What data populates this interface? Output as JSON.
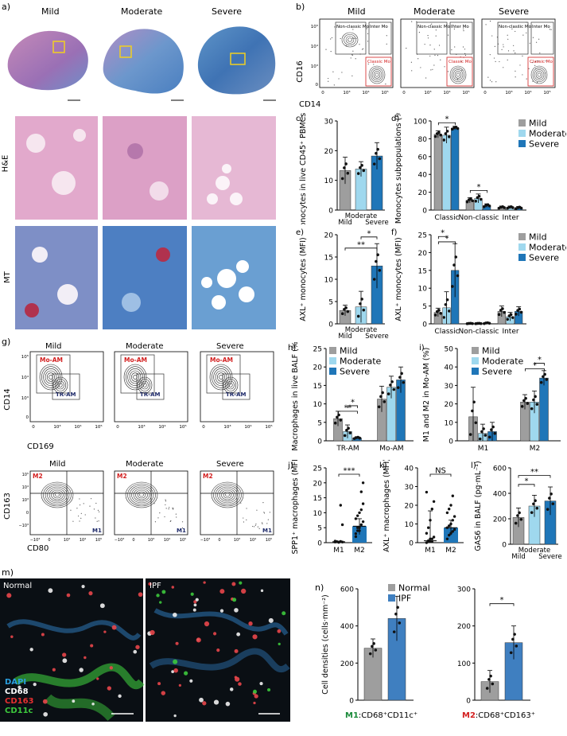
{
  "colors": {
    "mild": "#9e9e9e",
    "moderate": "#9fd8ee",
    "severe": "#1f76b8",
    "normal": "#9e9e9e",
    "ipf": "#3f7fc0",
    "red_label": "#d32020",
    "tissue_pink": "#c880b0",
    "tissue_blue": "#5b8fc8"
  },
  "panels": {
    "a": "a)",
    "b": "b)",
    "c": "c)",
    "d": "d)",
    "e": "e)",
    "f": "f)",
    "g": "g)",
    "h": "h)",
    "i": "i)",
    "j": "j)",
    "k": "k)",
    "l": "l)",
    "m": "m)",
    "n": "n)"
  },
  "groups": [
    "Mild",
    "Moderate",
    "Severe"
  ],
  "legend": [
    "Mild",
    "Moderate",
    "Severe"
  ],
  "legend_n": [
    "Normal",
    "IPF"
  ],
  "a": {
    "row_labels": [
      "H&E",
      "MT"
    ]
  },
  "b": {
    "gates": {
      "nc": "Non-classic Mo",
      "inter": "Inter Mo",
      "classic": "Classic Mo"
    },
    "xlabel": "CD14",
    "ylabel": "CD16",
    "ticks_y": [
      "10⁵",
      "10⁴",
      "10³",
      "0"
    ],
    "ticks_x": [
      "0",
      "10³",
      "10⁴",
      "10⁵"
    ]
  },
  "g": {
    "top_gates": {
      "moam": "Mo-AM",
      "tram": "TR-AM"
    },
    "top_xlabel": "CD169",
    "top_ylabel": "CD14",
    "top_ticks_y": [
      "10⁵",
      "10⁴",
      "10³",
      "0"
    ],
    "top_ticks_x": [
      "0",
      "10³",
      "10⁴",
      "10⁵"
    ],
    "bottom_gates": {
      "m2": "M2",
      "m1": "M1"
    },
    "bottom_xlabel": "CD80",
    "bottom_ylabel": "CD163",
    "bottom_ticks_y": [
      "10⁵",
      "10⁴",
      "10³",
      "0",
      "−10³"
    ],
    "bottom_ticks_x": [
      "−10³",
      "0",
      "10³",
      "10⁴",
      "10⁵"
    ]
  },
  "m": {
    "normal": "Normal",
    "ipf": "IPF",
    "stains": [
      "DAPI",
      "CD68",
      "CD163",
      "CD11c"
    ],
    "stain_colors": [
      "#2aa0e0",
      "#ffffff",
      "#e53030",
      "#3cc83c"
    ]
  },
  "chart_data": [
    {
      "id": "c",
      "type": "bar",
      "categories": [
        "Mild",
        "Moderate",
        "Severe"
      ],
      "values": [
        13.3,
        13.8,
        18.2
      ],
      "errors": [
        4.5,
        2.5,
        4.5
      ],
      "ylabel": "Monocytes in live CD45⁺ PBMCs (%)",
      "ylim": [
        0,
        30
      ],
      "yticks": [
        0,
        10,
        20,
        30
      ],
      "xlabels": [
        "Mild",
        "Moderate",
        "Severe"
      ]
    },
    {
      "id": "d",
      "type": "bar",
      "categories": [
        "Classic",
        "Non-classic",
        "Inter"
      ],
      "series": [
        {
          "name": "Mild",
          "values": [
            85,
            11,
            3
          ],
          "errors": [
            4,
            3,
            1.5
          ]
        },
        {
          "name": "Moderate",
          "values": [
            84,
            13,
            3
          ],
          "errors": [
            9,
            5,
            1.5
          ]
        },
        {
          "name": "Severe",
          "values": [
            92,
            5,
            2.5
          ],
          "errors": [
            2,
            2,
            1.5
          ]
        }
      ],
      "ylabel": "Monocytes subpopulations (%)",
      "ylim": [
        0,
        100
      ],
      "yticks": [
        0,
        20,
        40,
        60,
        80,
        100
      ],
      "sig": [
        "*",
        "*"
      ]
    },
    {
      "id": "e",
      "type": "bar",
      "categories": [
        "Mild",
        "Moderate",
        "Severe"
      ],
      "values": [
        3,
        3.8,
        13
      ],
      "errors": [
        1.2,
        3.5,
        5
      ],
      "ylabel": "AXL⁺ monocytes (MFI)",
      "ylim": [
        0,
        20
      ],
      "yticks": [
        0,
        5,
        10,
        15,
        20
      ],
      "sig": [
        "*",
        "**"
      ],
      "xlabels": [
        "Mild",
        "Moderate",
        "Severe"
      ]
    },
    {
      "id": "f",
      "type": "bar",
      "categories": [
        "Classic",
        "Non-classic",
        "Inter"
      ],
      "series": [
        {
          "name": "Mild",
          "values": [
            3.2,
            0.1,
            3.5
          ],
          "errors": [
            1.2,
            0.1,
            1.5
          ]
        },
        {
          "name": "Moderate",
          "values": [
            4.5,
            0.1,
            2
          ],
          "errors": [
            4.5,
            0.1,
            1.2
          ]
        },
        {
          "name": "Severe",
          "values": [
            15,
            0.2,
            3.5
          ],
          "errors": [
            7.5,
            0.2,
            1.3
          ]
        }
      ],
      "ylabel": "AXL⁺ monocytes (MFI)",
      "ylim": [
        0,
        25
      ],
      "yticks": [
        0,
        5,
        10,
        15,
        20,
        25
      ],
      "sig": [
        "*",
        "*"
      ]
    },
    {
      "id": "h",
      "type": "bar",
      "categories": [
        "TR-AM",
        "Mo-AM"
      ],
      "series": [
        {
          "name": "Mild",
          "values": [
            6,
            11.3
          ],
          "errors": [
            2,
            3.5
          ]
        },
        {
          "name": "Moderate",
          "values": [
            2.5,
            14.5
          ],
          "errors": [
            1.8,
            3
          ]
        },
        {
          "name": "Severe",
          "values": [
            0.8,
            16.5
          ],
          "errors": [
            0.3,
            3.5
          ]
        }
      ],
      "ylabel": "Macrophages in live BALF (%)",
      "ylim": [
        0,
        25
      ],
      "yticks": [
        0,
        5,
        10,
        15,
        20,
        25
      ],
      "sig": [
        "*",
        "**"
      ]
    },
    {
      "id": "i",
      "type": "bar",
      "categories": [
        "M1",
        "M2"
      ],
      "series": [
        {
          "name": "Mild",
          "values": [
            13,
            21
          ],
          "errors": [
            16,
            4
          ]
        },
        {
          "name": "Moderate",
          "values": [
            4,
            21
          ],
          "errors": [
            5,
            6
          ]
        },
        {
          "name": "Severe",
          "values": [
            5,
            34
          ],
          "errors": [
            5,
            4
          ]
        }
      ],
      "ylabel": "M1 and M2 in Mo-AM (%)",
      "ylim": [
        0,
        50
      ],
      "yticks": [
        0,
        10,
        20,
        30,
        40,
        50
      ],
      "sig": [
        "*",
        "*"
      ]
    },
    {
      "id": "j",
      "type": "scatter",
      "categories": [
        "M1",
        "M2"
      ],
      "medians": [
        0.3,
        5.5
      ],
      "errors": [
        [
          0,
          0
        ],
        [
          2.8,
          2.5
        ]
      ],
      "ylabel": "SPP1⁺ macrophages (MFI)",
      "ylim": [
        0,
        25
      ],
      "yticks": [
        0,
        5,
        10,
        15,
        20,
        25
      ],
      "sig": [
        "***"
      ]
    },
    {
      "id": "k",
      "type": "scatter",
      "categories": [
        "M1",
        "M2"
      ],
      "medians": [
        1,
        8
      ],
      "errors": [
        [
          1,
          16
        ],
        [
          4,
          4
        ]
      ],
      "ylabel": "AXL⁺ macrophages (MFI)",
      "ylim": [
        0,
        40
      ],
      "yticks": [
        0,
        10,
        20,
        30,
        40
      ],
      "sig": [
        "NS"
      ]
    },
    {
      "id": "l",
      "type": "bar",
      "categories": [
        "Mild",
        "Moderate",
        "Severe"
      ],
      "values": [
        210,
        300,
        340
      ],
      "errors": [
        75,
        85,
        110
      ],
      "ylabel": "GAS6 in BALF (pg·mL⁻¹)",
      "ylim": [
        0,
        600
      ],
      "yticks": [
        0,
        200,
        400,
        600
      ],
      "sig": [
        "*",
        "**"
      ],
      "xlabels": [
        "Mild",
        "Moderate",
        "Severe"
      ]
    },
    {
      "id": "n1",
      "type": "bar",
      "categories": [
        "Normal",
        "IPF"
      ],
      "values": [
        280,
        440
      ],
      "errors": [
        50,
        120
      ],
      "ylabel": "Cell densities (cells·mm⁻²)",
      "ylim": [
        0,
        600
      ],
      "yticks": [
        0,
        200,
        400,
        600
      ],
      "xcaption_a": "M1",
      "xcaption_b": ":CD68⁺CD11c⁺"
    },
    {
      "id": "n2",
      "type": "bar",
      "categories": [
        "Normal",
        "IPF"
      ],
      "values": [
        50,
        155
      ],
      "errors": [
        30,
        45
      ],
      "ylim": [
        0,
        300
      ],
      "yticks": [
        0,
        100,
        200,
        300
      ],
      "sig": [
        "*"
      ],
      "xcaption_a": "M2",
      "xcaption_b": ":CD68⁺CD163⁺"
    }
  ]
}
